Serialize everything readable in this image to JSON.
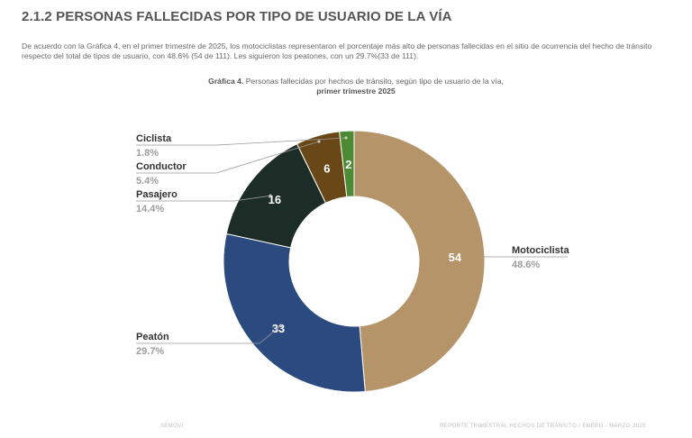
{
  "section_heading": "2.1.2 PERSONAS FALLECIDAS POR TIPO DE USUARIO DE LA VÍA",
  "intro_text": "De acuerdo con la Gráfica 4, en el primer trimestre de 2025, los motociclistas representaron el porcentaje más alto de personas fallecidas en el sitio de ocurrencia del hecho de tránsito respecto del total de tipos de usuario, con 48.6% (54 de 111). Les siguieron los peatones, con un 29.7%(33 de 111).",
  "chart_title": {
    "label": "Gráfica 4.",
    "text": " Personas fallecidas por hechos de tránsito, según tipo de usuario de la vía,",
    "line2": "primer trimestre 2025"
  },
  "chart_data": {
    "type": "pie",
    "donut": true,
    "title": "Gráfica 4. Personas fallecidas por hechos de tránsito, según tipo de usuario de la vía, primer trimestre 2025",
    "total": 111,
    "slices": [
      {
        "label": "Motociclista",
        "value": 54,
        "percent": "48.6%",
        "color": "#b5946a"
      },
      {
        "label": "Peatón",
        "value": 33,
        "percent": "29.7%",
        "color": "#2b4a7f"
      },
      {
        "label": "Pasajero",
        "value": 16,
        "percent": "14.4%",
        "color": "#1c2d28"
      },
      {
        "label": "Conductor",
        "value": 6,
        "percent": "5.4%",
        "color": "#6a4716"
      },
      {
        "label": "Ciclista",
        "value": 2,
        "percent": "1.8%",
        "color": "#4c8a34"
      }
    ]
  },
  "footer": {
    "left": "SEMOVI",
    "right": "REPORTE TRIMESTRAL HECHOS DE TRÁNSITO / ENERO - MARZO 2025"
  }
}
